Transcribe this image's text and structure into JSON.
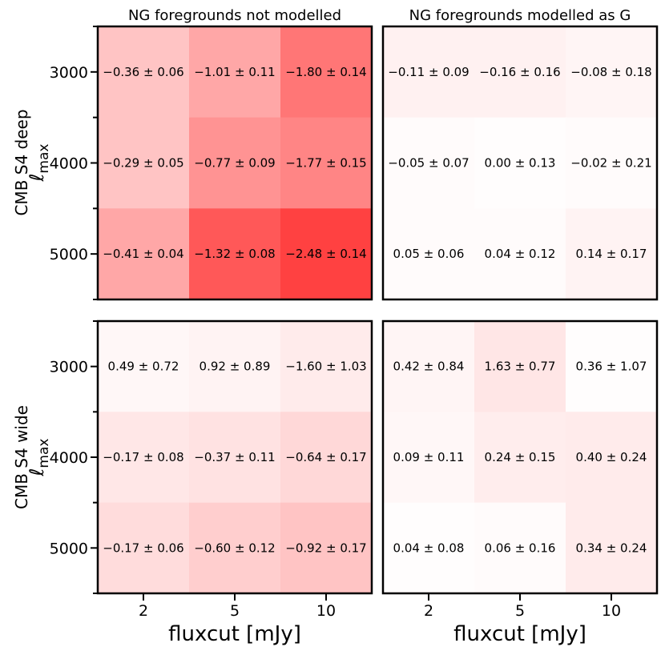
{
  "chart_data": {
    "type": "heatmap",
    "color_positive": "#ff3b3b",
    "color_base": "#ffffff",
    "color_max_abs": 2.6,
    "panels": [
      {
        "id": "deep-notmodelled",
        "title": "NG foregrounds not modelled",
        "row_label": "CMB S4 deep",
        "ylabel": "ℓ",
        "ylabel_sub": "max",
        "xlabel": "fluxcut [mJy]",
        "x_categories": [
          "2",
          "5",
          "10"
        ],
        "y_categories": [
          "3000",
          "4000",
          "5000"
        ],
        "values": [
          [
            -0.36,
            -1.01,
            -1.8
          ],
          [
            -0.29,
            -0.77,
            -1.77
          ],
          [
            -0.41,
            -1.32,
            -2.48
          ]
        ],
        "errors": [
          [
            0.06,
            0.11,
            0.14
          ],
          [
            0.05,
            0.09,
            0.15
          ],
          [
            0.04,
            0.08,
            0.14
          ]
        ],
        "labels": [
          [
            "−0.36 ± 0.06",
            "−1.01 ± 0.11",
            "−1.80 ± 0.14"
          ],
          [
            "−0.29 ± 0.05",
            "−0.77 ± 0.09",
            "−1.77 ± 0.15"
          ],
          [
            "−0.41 ± 0.04",
            "−1.32 ± 0.08",
            "−2.48 ± 0.14"
          ]
        ]
      },
      {
        "id": "deep-modelled",
        "title": "NG foregrounds modelled as G",
        "x_categories": [
          "2",
          "5",
          "10"
        ],
        "y_categories": [
          "3000",
          "4000",
          "5000"
        ],
        "values": [
          [
            -0.11,
            -0.16,
            -0.08
          ],
          [
            -0.05,
            0.0,
            -0.02
          ],
          [
            0.05,
            0.04,
            0.14
          ]
        ],
        "errors": [
          [
            0.09,
            0.16,
            0.18
          ],
          [
            0.07,
            0.13,
            0.21
          ],
          [
            0.06,
            0.12,
            0.17
          ]
        ],
        "labels": [
          [
            "−0.11 ± 0.09",
            "−0.16 ± 0.16",
            "−0.08 ± 0.18"
          ],
          [
            "−0.05 ± 0.07",
            "0.00 ± 0.13",
            "−0.02 ± 0.21"
          ],
          [
            "0.05 ± 0.06",
            "0.04 ± 0.12",
            "0.14 ± 0.17"
          ]
        ]
      },
      {
        "id": "wide-notmodelled",
        "row_label": "CMB S4 wide",
        "ylabel": "ℓ",
        "ylabel_sub": "max",
        "xlabel": "fluxcut [mJy]",
        "x_categories": [
          "2",
          "5",
          "10"
        ],
        "y_categories": [
          "3000",
          "4000",
          "5000"
        ],
        "values": [
          [
            0.49,
            0.92,
            -1.6
          ],
          [
            -0.17,
            -0.37,
            -0.64
          ],
          [
            -0.17,
            -0.6,
            -0.92
          ]
        ],
        "errors": [
          [
            0.72,
            0.89,
            1.03
          ],
          [
            0.08,
            0.11,
            0.17
          ],
          [
            0.06,
            0.12,
            0.17
          ]
        ],
        "labels": [
          [
            "0.49 ± 0.72",
            "0.92 ± 0.89",
            "−1.60 ± 1.03"
          ],
          [
            "−0.17 ± 0.08",
            "−0.37 ± 0.11",
            "−0.64 ± 0.17"
          ],
          [
            "−0.17 ± 0.06",
            "−0.60 ± 0.12",
            "−0.92 ± 0.17"
          ]
        ]
      },
      {
        "id": "wide-modelled",
        "xlabel": "fluxcut [mJy]",
        "x_categories": [
          "2",
          "5",
          "10"
        ],
        "y_categories": [
          "3000",
          "4000",
          "5000"
        ],
        "values": [
          [
            0.42,
            1.63,
            0.36
          ],
          [
            0.09,
            0.24,
            0.4
          ],
          [
            0.04,
            0.06,
            0.34
          ]
        ],
        "errors": [
          [
            0.84,
            0.77,
            1.07
          ],
          [
            0.11,
            0.15,
            0.24
          ],
          [
            0.08,
            0.16,
            0.24
          ]
        ],
        "labels": [
          [
            "0.42 ± 0.84",
            "1.63 ± 0.77",
            "0.36 ± 1.07"
          ],
          [
            "0.09 ± 0.11",
            "0.24 ± 0.15",
            "0.40 ± 0.24"
          ],
          [
            "0.04 ± 0.08",
            "0.06 ± 0.16",
            "0.34 ± 0.24"
          ]
        ]
      }
    ],
    "cell_alpha": [
      [
        [
          0.3,
          0.45,
          0.7
        ],
        [
          0.3,
          0.55,
          0.62
        ],
        [
          0.45,
          0.85,
          0.97
        ]
      ],
      [
        [
          0.07,
          0.07,
          0.05
        ],
        [
          0.02,
          0.01,
          0.02
        ],
        [
          0.02,
          0.02,
          0.06
        ]
      ],
      [
        [
          0.04,
          0.06,
          0.1
        ],
        [
          0.12,
          0.15,
          0.2
        ],
        [
          0.18,
          0.25,
          0.3
        ]
      ],
      [
        [
          0.05,
          0.13,
          0.01
        ],
        [
          0.04,
          0.09,
          0.1
        ],
        [
          0.01,
          0.02,
          0.1
        ]
      ]
    ]
  }
}
